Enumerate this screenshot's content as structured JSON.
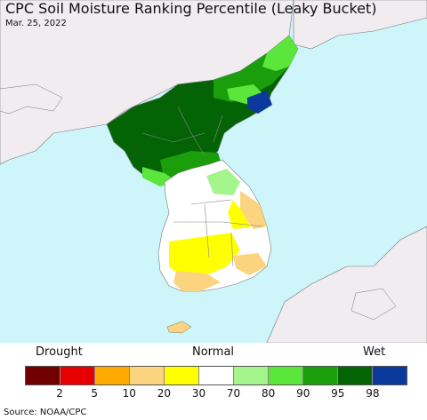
{
  "title": "CPC Soil Moisture Ranking Percentile (Leaky Bucket)",
  "date": "Mar. 25, 2022",
  "legend": {
    "drought_label": "Drought",
    "normal_label": "Normal",
    "wet_label": "Wet",
    "colors": [
      "#730000",
      "#e60000",
      "#ffaa00",
      "#fcd37f",
      "#ffff00",
      "#ffffff",
      "#a3f58c",
      "#5be63c",
      "#1a9e0c",
      "#046405",
      "#0c3a9c"
    ],
    "ticks": [
      "2",
      "5",
      "10",
      "20",
      "30",
      "70",
      "80",
      "90",
      "95",
      "98"
    ]
  },
  "source": "Source: NOAA/CPC",
  "map_colors": {
    "ocean": "#cdf5fa",
    "foreign_land": "#f0ecf0",
    "border": "#777777"
  }
}
